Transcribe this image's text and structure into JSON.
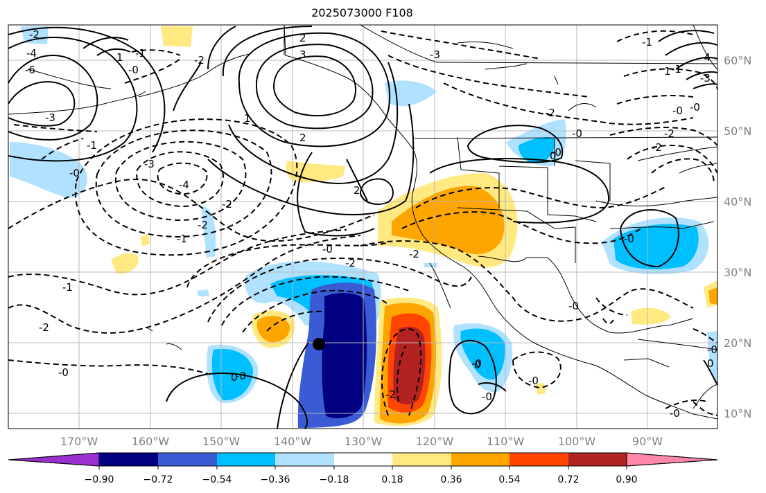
{
  "title": "2025073000 F108",
  "latitudes": [
    "60°N",
    "50°N",
    "40°N",
    "30°N",
    "20°N",
    "10°N"
  ],
  "longitudes": [
    "170°W",
    "160°W",
    "150°W",
    "140°W",
    "130°W",
    "120°W",
    "110°W",
    "100°W",
    "90°W"
  ],
  "colorbar": {
    "ticks": [
      "−0.90",
      "−0.72",
      "−0.54",
      "−0.36",
      "−0.18",
      "0.18",
      "0.36",
      "0.54",
      "0.72",
      "0.90"
    ],
    "colors": [
      "#9b30d0",
      "#000080",
      "#3a5bd4",
      "#00bfff",
      "#b0e2ff",
      "#ffffff",
      "#ffe980",
      "#ffa500",
      "#ff4500",
      "#b22222",
      "#ff88aa"
    ]
  },
  "contour_labels": [
    "-2",
    "-4",
    "-6",
    "-3",
    "-1",
    "-0",
    "-3",
    "-4",
    "-2",
    "-1",
    "-2",
    "-0",
    "-2",
    "-1",
    "-2",
    "-0",
    "-2",
    "-2",
    "-0",
    "-0",
    "-2",
    "-3",
    "-0",
    "-2",
    "-1",
    "-1",
    "-0",
    "-2",
    "-0",
    "-0",
    "-0",
    "-2",
    "-0",
    "-0",
    "-1",
    "-0",
    "-0",
    "-0",
    "-4",
    "-3",
    "-0"
  ],
  "solid_labels": [
    "3",
    "2",
    "1",
    "2",
    "1",
    "2",
    "0",
    "0",
    "0",
    "1",
    "0"
  ],
  "marker": "storm-center"
}
